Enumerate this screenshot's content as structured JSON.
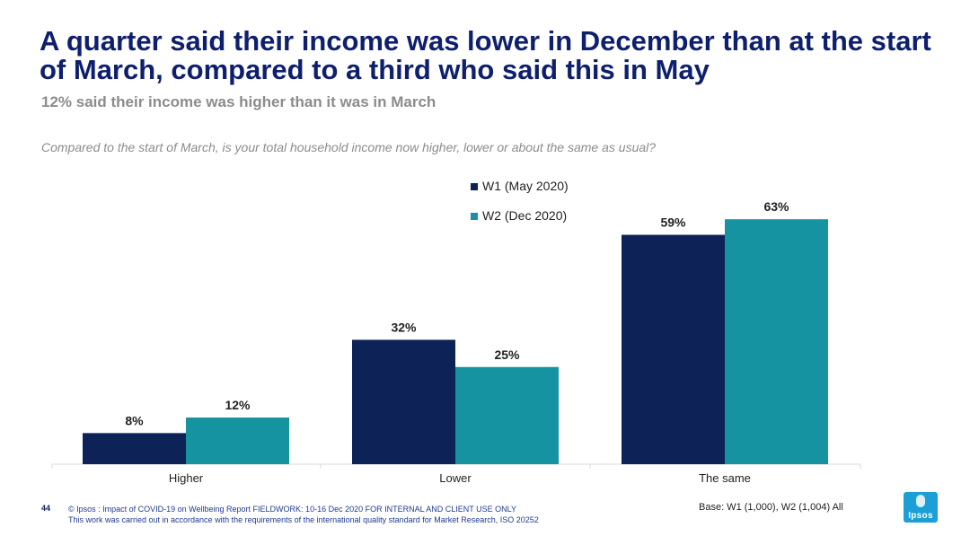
{
  "title": "A quarter said their income was lower in December than at the start of March, compared to a third who said this in May",
  "subtitle": "12% said their income was higher than it was in March",
  "question": "Compared to the start of March, is your total household income now higher, lower or about the same as usual?",
  "footer": {
    "page_number": "44",
    "line1": "© Ipsos : Impact of COVID-19 on Wellbeing Report FIELDWORK: 10-16 Dec 2020 FOR INTERNAL AND CLIENT USE ONLY",
    "line2": "This work was carried out in accordance with the requirements of the international quality standard for Market Research, ISO 20252",
    "base": "Base: W1 (1,000), W2 (1,004) All"
  },
  "logo_text": "Ipsos",
  "colors": {
    "title": "#0e1f6e",
    "w1": "#0d2256",
    "w2": "#1593a1",
    "logo": "#1c9fd6"
  },
  "chart_data": {
    "type": "bar",
    "categories": [
      "Higher",
      "Lower",
      "The same"
    ],
    "series": [
      {
        "name": "W1 (May 2020)",
        "values": [
          8,
          32,
          59
        ],
        "labels": [
          "8%",
          "32%",
          "59%"
        ],
        "color": "#0d2256"
      },
      {
        "name": "W2 (Dec 2020)",
        "values": [
          12,
          25,
          63
        ],
        "labels": [
          "12%",
          "25%",
          "63%"
        ],
        "color": "#1593a1"
      }
    ],
    "ylim": [
      0,
      63
    ],
    "grid": false,
    "legend_position": "top-center",
    "xlabel": "",
    "ylabel": ""
  }
}
